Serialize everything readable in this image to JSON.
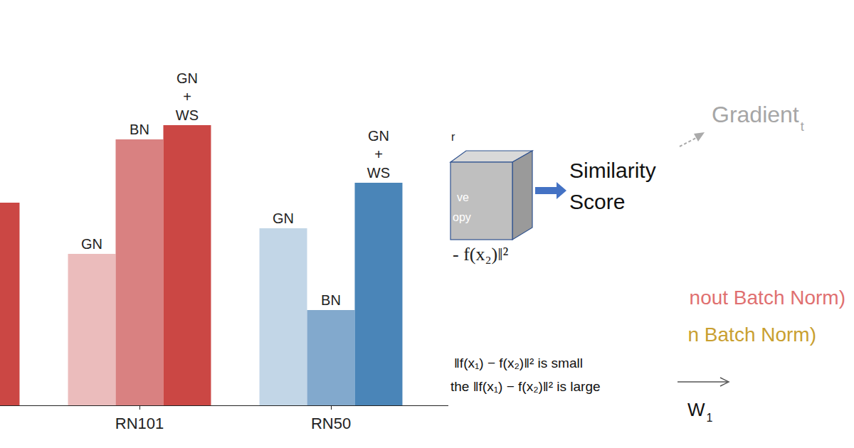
{
  "chart_data": {
    "type": "bar",
    "categories": [
      null,
      "RN101",
      "RN50"
    ],
    "series": [
      {
        "name": "GN",
        "colors": [
          "#ebbcbc",
          "#ebbcbc",
          "#c2d6e7"
        ],
        "values": [
          null,
          213,
          249
        ]
      },
      {
        "name": "BN",
        "colors": [
          "#d98181",
          "#d98181",
          "#82a9cd"
        ],
        "values": [
          null,
          374,
          134
        ]
      },
      {
        "name": "GN + WS",
        "colors": [
          "#cb4744",
          "#cb4744",
          "#4a85b8"
        ],
        "values": [
          285,
          394,
          313
        ]
      }
    ],
    "ylim": [
      0,
      570
    ],
    "tick_labels": "x",
    "grid": false
  },
  "diagram": {
    "box": {
      "label_top": "r",
      "texts": [
        "ve",
        "opy"
      ],
      "formula": "- f(x₂)‖²"
    },
    "output": "Similarity Score",
    "gradient": {
      "label": "Gradient",
      "subscript": "t"
    },
    "legend_lines": [
      "nout Batch Norm)",
      "n Batch Norm)"
    ],
    "notes": [
      "‖f(x₁) − f(x₂)‖² is small",
      "the ‖f(x₁) − f(x₂)‖² is large"
    ],
    "axis": {
      "label": "W",
      "subscript": "1"
    }
  }
}
